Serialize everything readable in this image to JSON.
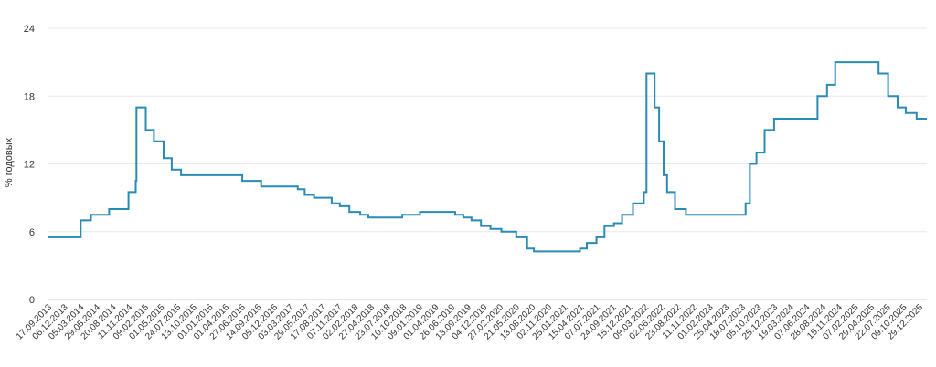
{
  "chart_data": {
    "type": "line",
    "title": "",
    "xlabel": "",
    "ylabel": "% годовых",
    "ylim": [
      0,
      24
    ],
    "yticks": [
      "0",
      "6",
      "12",
      "18",
      "24"
    ],
    "grid": "horizontal",
    "x_tick_labels": [
      "17.09.2013",
      "06.12.2013",
      "05.03.2014",
      "29.05.2014",
      "20.08.2014",
      "11.11.2014",
      "09.02.2015",
      "01.05.2015",
      "24.07.2015",
      "13.10.2015",
      "01.01.2016",
      "01.04.2016",
      "27.06.2016",
      "14.09.2016",
      "05.12.2016",
      "03.03.2017",
      "29.05.2017",
      "17.08.2017",
      "07.11.2017",
      "02.02.2018",
      "27.04.2018",
      "23.07.2018",
      "10.10.2018",
      "09.01.2019",
      "01.04.2019",
      "26.06.2019",
      "13.09.2019",
      "04.12.2019",
      "27.02.2020",
      "21.05.2020",
      "13.08.2020",
      "02.11.2020",
      "25.01.2021",
      "15.04.2021",
      "07.07.2021",
      "24.09.2021",
      "15.12.2021",
      "09.03.2022",
      "02.06.2022",
      "23.08.2022",
      "11.11.2022",
      "01.02.2023",
      "25.04.2023",
      "18.07.2023",
      "05.10.2023",
      "25.12.2023",
      "19.03.2024",
      "07.06.2024",
      "28.08.2024",
      "15.11.2024",
      "07.02.2025",
      "29.04.2025",
      "22.07.2025",
      "09.10.2025",
      "29.12.2025"
    ],
    "series": [
      {
        "color": "#2a8bb5",
        "values": [
          [
            "2013-09-13",
            5.5
          ],
          [
            "2014-03-03",
            7.0
          ],
          [
            "2014-04-25",
            7.5
          ],
          [
            "2014-07-28",
            8.0
          ],
          [
            "2014-11-05",
            9.5
          ],
          [
            "2014-12-12",
            10.5
          ],
          [
            "2014-12-16",
            17.0
          ],
          [
            "2015-02-02",
            15.0
          ],
          [
            "2015-03-16",
            14.0
          ],
          [
            "2015-05-05",
            12.5
          ],
          [
            "2015-06-16",
            11.5
          ],
          [
            "2015-08-03",
            11.0
          ],
          [
            "2016-06-14",
            10.5
          ],
          [
            "2016-09-19",
            10.0
          ],
          [
            "2017-03-27",
            9.75
          ],
          [
            "2017-05-02",
            9.25
          ],
          [
            "2017-06-19",
            9.0
          ],
          [
            "2017-09-18",
            8.5
          ],
          [
            "2017-10-30",
            8.25
          ],
          [
            "2017-12-18",
            7.75
          ],
          [
            "2018-02-12",
            7.5
          ],
          [
            "2018-03-26",
            7.25
          ],
          [
            "2018-09-17",
            7.5
          ],
          [
            "2018-12-17",
            7.75
          ],
          [
            "2019-06-17",
            7.5
          ],
          [
            "2019-07-29",
            7.25
          ],
          [
            "2019-09-09",
            7.0
          ],
          [
            "2019-10-28",
            6.5
          ],
          [
            "2019-12-16",
            6.25
          ],
          [
            "2020-02-10",
            6.0
          ],
          [
            "2020-04-27",
            5.5
          ],
          [
            "2020-06-22",
            4.5
          ],
          [
            "2020-07-27",
            4.25
          ],
          [
            "2021-03-22",
            4.5
          ],
          [
            "2021-04-26",
            5.0
          ],
          [
            "2021-06-15",
            5.5
          ],
          [
            "2021-07-26",
            6.5
          ],
          [
            "2021-09-13",
            6.75
          ],
          [
            "2021-10-25",
            7.5
          ],
          [
            "2021-12-20",
            8.5
          ],
          [
            "2022-02-14",
            9.5
          ],
          [
            "2022-02-28",
            20.0
          ],
          [
            "2022-04-11",
            17.0
          ],
          [
            "2022-05-04",
            14.0
          ],
          [
            "2022-05-27",
            11.0
          ],
          [
            "2022-06-14",
            9.5
          ],
          [
            "2022-07-25",
            8.0
          ],
          [
            "2022-09-19",
            7.5
          ],
          [
            "2023-07-24",
            8.5
          ],
          [
            "2023-08-15",
            12.0
          ],
          [
            "2023-09-18",
            13.0
          ],
          [
            "2023-10-30",
            15.0
          ],
          [
            "2023-12-18",
            16.0
          ],
          [
            "2024-07-29",
            18.0
          ],
          [
            "2024-09-16",
            19.0
          ],
          [
            "2024-10-28",
            21.0
          ],
          [
            "2025-06-09",
            20.0
          ],
          [
            "2025-07-28",
            18.0
          ],
          [
            "2025-09-15",
            17.0
          ],
          [
            "2025-10-27",
            16.5
          ],
          [
            "2025-12-22",
            16.0
          ],
          [
            "2026-02-13",
            16.0
          ]
        ]
      }
    ]
  }
}
